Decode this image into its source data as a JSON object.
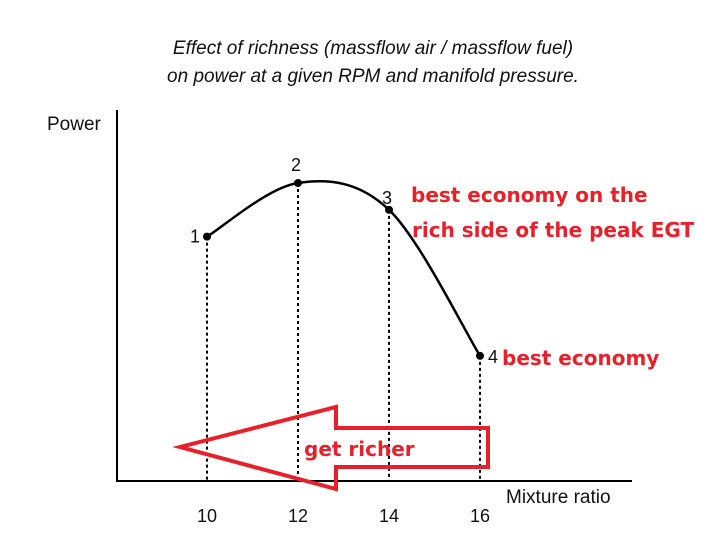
{
  "chart_data": {
    "type": "line",
    "title": [
      "Effect of richness (massflow air / massflow fuel)",
      "on power at a given RPM and manifold pressure."
    ],
    "xlabel": "Mixture ratio",
    "ylabel": "Power",
    "x_ticks": [
      10,
      12,
      14,
      16
    ],
    "points": [
      {
        "label": "1",
        "x": 10,
        "y": 0.82
      },
      {
        "label": "2",
        "x": 12,
        "y": 1.0
      },
      {
        "label": "3",
        "x": 14,
        "y": 0.91
      },
      {
        "label": "4",
        "x": 16,
        "y": 0.42
      }
    ],
    "annotations": [
      {
        "point": "3",
        "lines": [
          "best economy on the",
          "rich side of the peak EGT"
        ]
      },
      {
        "point": "4",
        "lines": [
          "best economy"
        ]
      }
    ],
    "arrow": {
      "text": "get richer",
      "direction": "left"
    },
    "colors": {
      "curve": "#000000",
      "annotation": "#e8202a"
    }
  }
}
